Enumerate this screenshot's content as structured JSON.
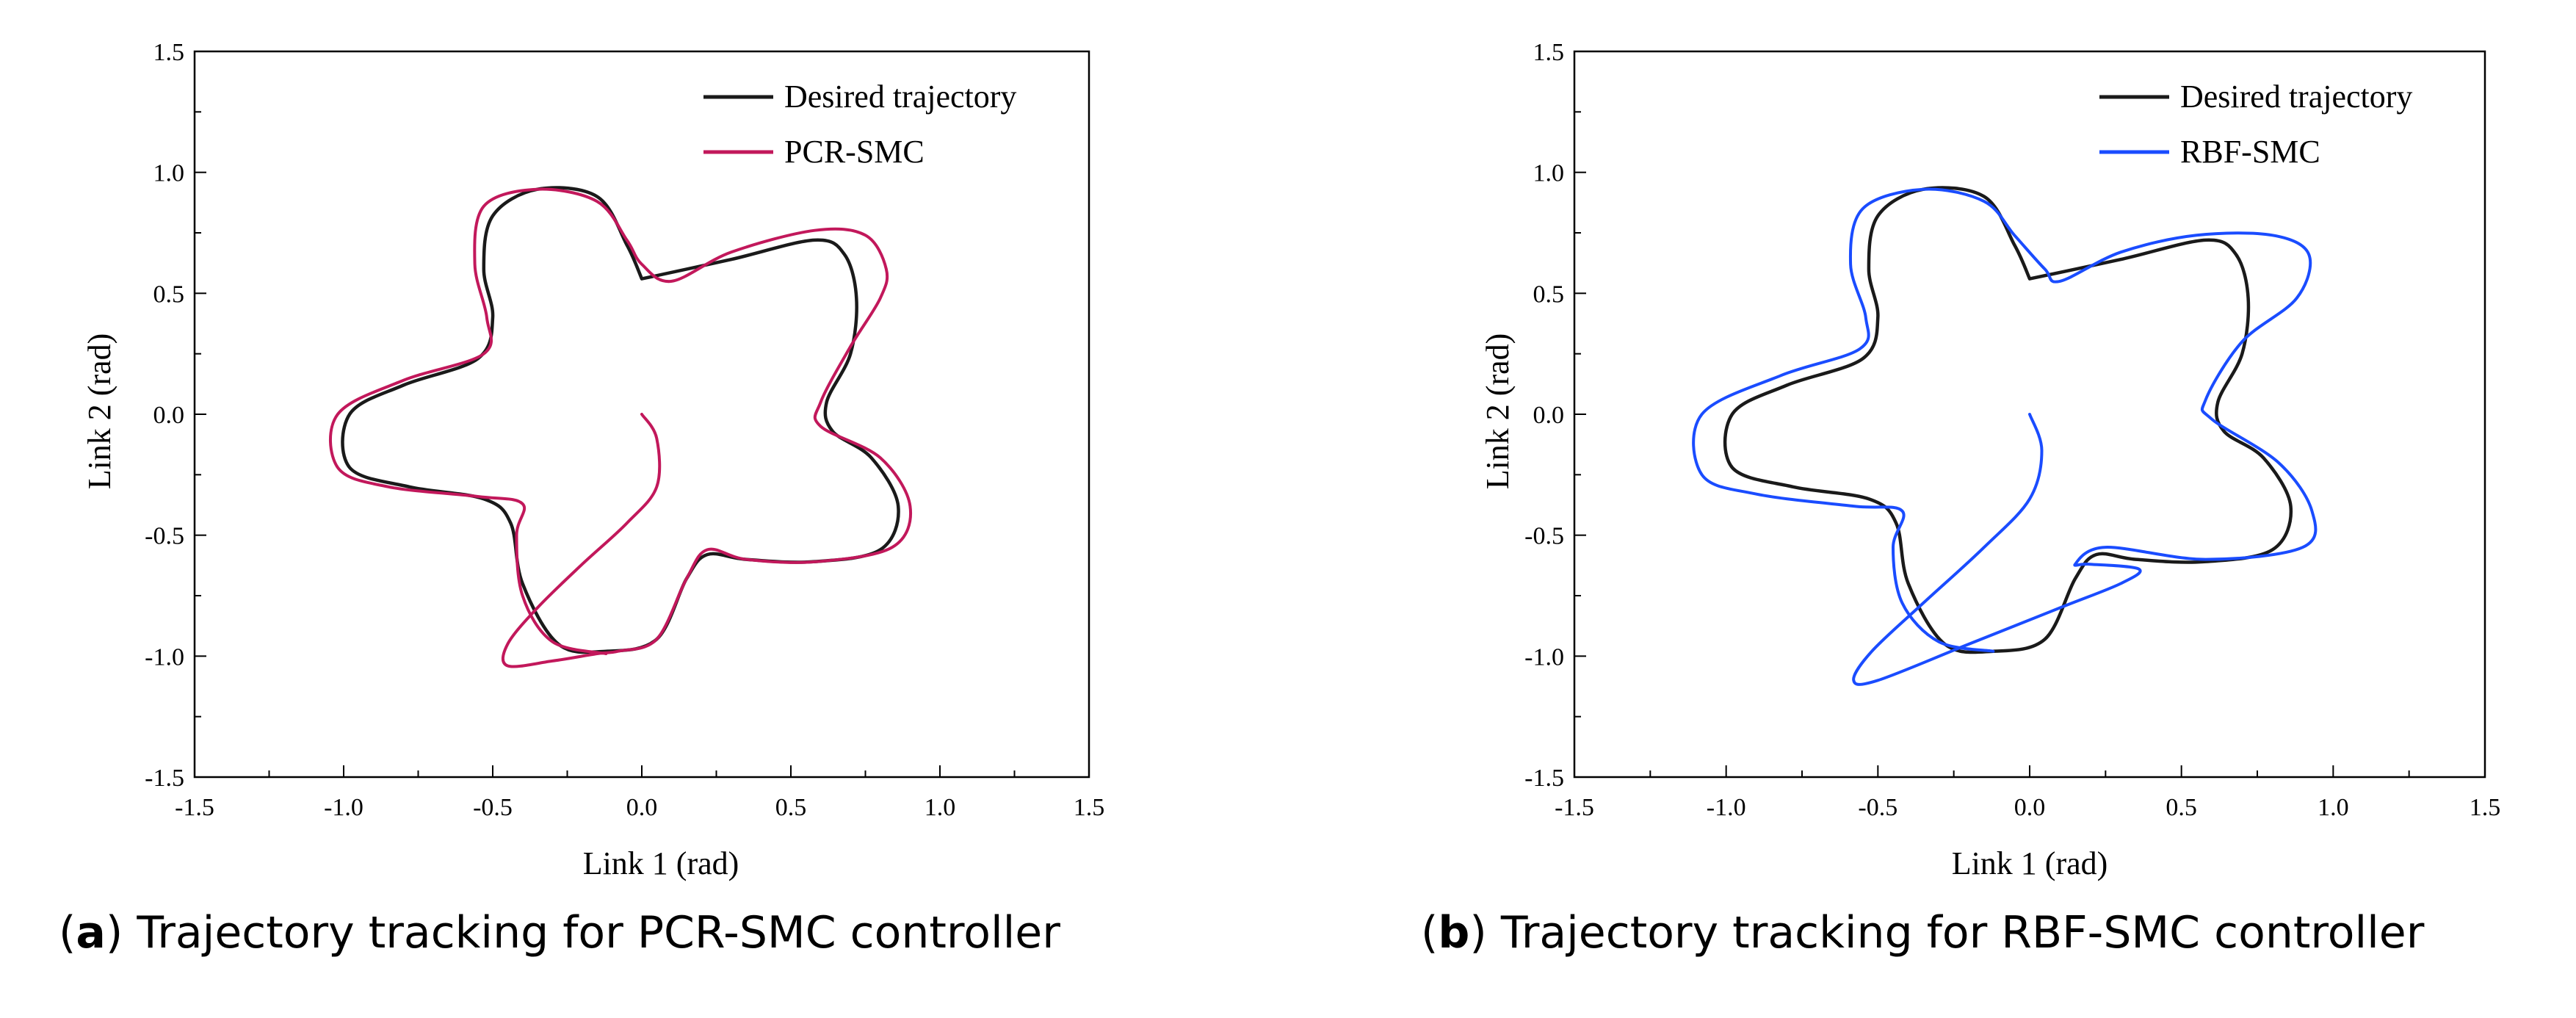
{
  "chart_data": [
    {
      "type": "line",
      "panel": "a",
      "caption_letter": "a",
      "caption_text": "Trajectory tracking for PCR-SMC controller",
      "xlabel": "Link 1 (rad)",
      "ylabel": "Link 2 (rad)",
      "xlim": [
        -1.5,
        1.5
      ],
      "ylim": [
        -1.5,
        1.5
      ],
      "xticks": [
        "-1.5",
        "-1.0",
        "-0.5",
        "0.0",
        "0.5",
        "1.0",
        "1.5"
      ],
      "yticks": [
        "1.5",
        "1.0",
        "0.5",
        "0.0",
        "-0.5",
        "-1.0",
        "-1.5"
      ],
      "legend_position": "top-right",
      "series": [
        {
          "name": "Desired trajectory",
          "color": "#1a1a1a",
          "points": [
            [
              0.0,
              0.56
            ],
            [
              0.3,
              0.64
            ],
            [
              0.58,
              0.72
            ],
            [
              0.68,
              0.66
            ],
            [
              0.72,
              0.48
            ],
            [
              0.7,
              0.25
            ],
            [
              0.62,
              0.05
            ],
            [
              0.64,
              -0.07
            ],
            [
              0.77,
              -0.18
            ],
            [
              0.86,
              -0.38
            ],
            [
              0.8,
              -0.56
            ],
            [
              0.57,
              -0.61
            ],
            [
              0.35,
              -0.6
            ],
            [
              0.22,
              -0.58
            ],
            [
              0.15,
              -0.68
            ],
            [
              0.05,
              -0.93
            ],
            [
              -0.12,
              -0.98
            ],
            [
              -0.28,
              -0.95
            ],
            [
              -0.4,
              -0.7
            ],
            [
              -0.44,
              -0.45
            ],
            [
              -0.53,
              -0.35
            ],
            [
              -0.78,
              -0.3
            ],
            [
              -0.98,
              -0.22
            ],
            [
              -0.98,
              0.0
            ],
            [
              -0.8,
              0.12
            ],
            [
              -0.55,
              0.23
            ],
            [
              -0.5,
              0.4
            ],
            [
              -0.53,
              0.6
            ],
            [
              -0.5,
              0.82
            ],
            [
              -0.35,
              0.93
            ],
            [
              -0.15,
              0.9
            ],
            [
              -0.05,
              0.7
            ],
            [
              0.0,
              0.56
            ]
          ]
        },
        {
          "name": "PCR-SMC",
          "color": "#c2185b",
          "points": [
            [
              0.0,
              0.0
            ],
            [
              0.05,
              -0.1
            ],
            [
              0.05,
              -0.3
            ],
            [
              -0.05,
              -0.45
            ],
            [
              -0.2,
              -0.62
            ],
            [
              -0.35,
              -0.8
            ],
            [
              -0.45,
              -0.95
            ],
            [
              -0.45,
              -1.04
            ],
            [
              -0.3,
              -1.02
            ],
            [
              -0.15,
              -0.99
            ],
            [
              -0.08,
              -0.98
            ],
            [
              0.05,
              -0.93
            ],
            [
              0.15,
              -0.68
            ],
            [
              0.22,
              -0.56
            ],
            [
              0.35,
              -0.6
            ],
            [
              0.58,
              -0.61
            ],
            [
              0.84,
              -0.55
            ],
            [
              0.9,
              -0.38
            ],
            [
              0.8,
              -0.18
            ],
            [
              0.6,
              -0.05
            ],
            [
              0.6,
              0.05
            ],
            [
              0.7,
              0.28
            ],
            [
              0.8,
              0.48
            ],
            [
              0.82,
              0.6
            ],
            [
              0.75,
              0.74
            ],
            [
              0.58,
              0.76
            ],
            [
              0.3,
              0.67
            ],
            [
              0.1,
              0.55
            ],
            [
              0.0,
              0.62
            ],
            [
              -0.05,
              0.72
            ],
            [
              -0.15,
              0.88
            ],
            [
              -0.35,
              0.93
            ],
            [
              -0.53,
              0.86
            ],
            [
              -0.56,
              0.62
            ],
            [
              -0.52,
              0.4
            ],
            [
              -0.53,
              0.25
            ],
            [
              -0.8,
              0.14
            ],
            [
              -1.02,
              0.0
            ],
            [
              -1.02,
              -0.22
            ],
            [
              -0.85,
              -0.3
            ],
            [
              -0.55,
              -0.34
            ],
            [
              -0.4,
              -0.37
            ],
            [
              -0.42,
              -0.5
            ],
            [
              -0.4,
              -0.75
            ],
            [
              -0.3,
              -0.94
            ],
            [
              -0.12,
              -0.99
            ]
          ]
        }
      ]
    },
    {
      "type": "line",
      "panel": "b",
      "caption_letter": "b",
      "caption_text": "Trajectory tracking for RBF-SMC controller",
      "xlabel": "Link 1 (rad)",
      "ylabel": "Link 2 (rad)",
      "xlim": [
        -1.5,
        1.5
      ],
      "ylim": [
        -1.5,
        1.5
      ],
      "xticks": [
        "-1.5",
        "-1.0",
        "-0.5",
        "0.0",
        "0.5",
        "1.0",
        "1.5"
      ],
      "yticks": [
        "1.5",
        "1.0",
        "0.5",
        "0.0",
        "-0.5",
        "-1.0",
        "-1.5"
      ],
      "legend_position": "top-right",
      "series": [
        {
          "name": "Desired trajectory",
          "color": "#1a1a1a",
          "points": [
            [
              0.0,
              0.56
            ],
            [
              0.3,
              0.64
            ],
            [
              0.58,
              0.72
            ],
            [
              0.68,
              0.66
            ],
            [
              0.72,
              0.48
            ],
            [
              0.7,
              0.25
            ],
            [
              0.62,
              0.05
            ],
            [
              0.64,
              -0.07
            ],
            [
              0.77,
              -0.18
            ],
            [
              0.86,
              -0.38
            ],
            [
              0.8,
              -0.56
            ],
            [
              0.57,
              -0.61
            ],
            [
              0.35,
              -0.6
            ],
            [
              0.22,
              -0.58
            ],
            [
              0.15,
              -0.68
            ],
            [
              0.05,
              -0.93
            ],
            [
              -0.12,
              -0.98
            ],
            [
              -0.28,
              -0.95
            ],
            [
              -0.4,
              -0.7
            ],
            [
              -0.44,
              -0.45
            ],
            [
              -0.53,
              -0.35
            ],
            [
              -0.78,
              -0.3
            ],
            [
              -0.98,
              -0.22
            ],
            [
              -0.98,
              0.0
            ],
            [
              -0.8,
              0.12
            ],
            [
              -0.55,
              0.23
            ],
            [
              -0.5,
              0.4
            ],
            [
              -0.53,
              0.6
            ],
            [
              -0.5,
              0.82
            ],
            [
              -0.35,
              0.93
            ],
            [
              -0.15,
              0.9
            ],
            [
              -0.05,
              0.7
            ],
            [
              0.0,
              0.56
            ]
          ]
        },
        {
          "name": "RBF-SMC",
          "color": "#1a4cff",
          "points": [
            [
              0.0,
              0.0
            ],
            [
              0.04,
              -0.15
            ],
            [
              0.0,
              -0.35
            ],
            [
              -0.15,
              -0.55
            ],
            [
              -0.35,
              -0.78
            ],
            [
              -0.52,
              -0.98
            ],
            [
              -0.58,
              -1.1
            ],
            [
              -0.5,
              -1.1
            ],
            [
              -0.2,
              -0.95
            ],
            [
              0.1,
              -0.8
            ],
            [
              0.3,
              -0.7
            ],
            [
              0.36,
              -0.64
            ],
            [
              0.2,
              -0.62
            ],
            [
              0.15,
              -0.62
            ],
            [
              0.25,
              -0.55
            ],
            [
              0.58,
              -0.6
            ],
            [
              0.9,
              -0.55
            ],
            [
              0.93,
              -0.4
            ],
            [
              0.82,
              -0.2
            ],
            [
              0.6,
              -0.02
            ],
            [
              0.58,
              0.06
            ],
            [
              0.7,
              0.3
            ],
            [
              0.88,
              0.48
            ],
            [
              0.92,
              0.66
            ],
            [
              0.8,
              0.74
            ],
            [
              0.55,
              0.74
            ],
            [
              0.3,
              0.67
            ],
            [
              0.1,
              0.55
            ],
            [
              0.05,
              0.6
            ],
            [
              -0.05,
              0.74
            ],
            [
              -0.15,
              0.88
            ],
            [
              -0.35,
              0.93
            ],
            [
              -0.55,
              0.85
            ],
            [
              -0.59,
              0.62
            ],
            [
              -0.54,
              0.4
            ],
            [
              -0.56,
              0.27
            ],
            [
              -0.82,
              0.16
            ],
            [
              -1.08,
              0.0
            ],
            [
              -1.08,
              -0.25
            ],
            [
              -0.9,
              -0.33
            ],
            [
              -0.58,
              -0.38
            ],
            [
              -0.42,
              -0.4
            ],
            [
              -0.45,
              -0.55
            ],
            [
              -0.42,
              -0.78
            ],
            [
              -0.3,
              -0.94
            ],
            [
              -0.12,
              -0.98
            ]
          ]
        }
      ]
    }
  ]
}
